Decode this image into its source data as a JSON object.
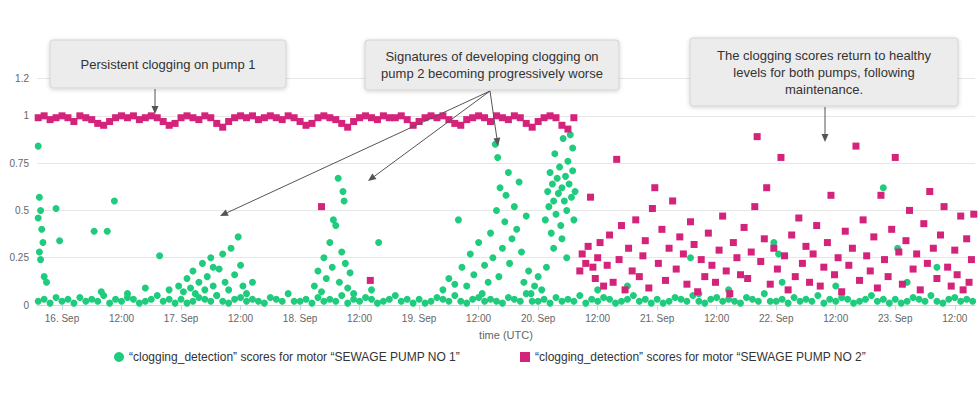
{
  "chart_data": {
    "type": "scatter",
    "annotations": [
      "Persistent clogging on pump 1",
      "Signatures of developing clogging on\npump 2 becoming progressively worse",
      "The clogging scores return to healthy\nlevels for both pumps, following\nmaintenance."
    ],
    "x_label": "time (UTC)",
    "xlim": [
      15.79,
      23.67
    ],
    "xticks": [
      {
        "value": 16,
        "label": "16. Sep"
      },
      {
        "value": 16.5,
        "label": "12:00"
      },
      {
        "value": 17,
        "label": "17. Sep"
      },
      {
        "value": 17.5,
        "label": "12:00"
      },
      {
        "value": 18,
        "label": "18. Sep"
      },
      {
        "value": 18.5,
        "label": "12:00"
      },
      {
        "value": 19,
        "label": "19. Sep"
      },
      {
        "value": 19.5,
        "label": "12:00"
      },
      {
        "value": 20,
        "label": "20. Sep"
      },
      {
        "value": 20.5,
        "label": "12:00"
      },
      {
        "value": 21,
        "label": "21. Sep"
      },
      {
        "value": 21.5,
        "label": "12:00"
      },
      {
        "value": 22,
        "label": "22. Sep"
      },
      {
        "value": 22.5,
        "label": "12:00"
      },
      {
        "value": 23,
        "label": "23. Sep"
      },
      {
        "value": 23.5,
        "label": "12:00"
      }
    ],
    "ylim": [
      0,
      1.2
    ],
    "yticks": [
      0,
      0.25,
      0.5,
      0.75,
      1,
      1.2
    ],
    "grid": true,
    "legend": "bottom",
    "series": [
      {
        "name": "“clogging_detection” scores for motor “SEWAGE PUMP NO 1”",
        "color": "#1fcb7c",
        "marker": "circle",
        "x": [
          15.8,
          15.85,
          15.9,
          15.95,
          16,
          16.05,
          16.1,
          16.15,
          16.2,
          16.25,
          16.3,
          16.35,
          16.4,
          16.45,
          16.5,
          16.55,
          16.6,
          16.65,
          16.7,
          16.75,
          16.8,
          16.85,
          16.9,
          16.95,
          17,
          17.05,
          17.1,
          17.15,
          17.2,
          17.25,
          17.3,
          17.35,
          17.4,
          17.45,
          17.5,
          17.55,
          17.6,
          17.65,
          17.7,
          17.75,
          17.8,
          17.85,
          17.9,
          17.95,
          18,
          18.05,
          18.1,
          18.15,
          18.2,
          18.25,
          18.3,
          18.35,
          18.4,
          18.45,
          18.5,
          18.55,
          18.6,
          18.65,
          18.7,
          18.75,
          18.8,
          18.85,
          18.9,
          18.95,
          19,
          19.05,
          19.1,
          19.15,
          19.2,
          19.25,
          19.3,
          19.35,
          19.4,
          19.45,
          19.5,
          19.55,
          19.6,
          19.65,
          19.7,
          19.75,
          19.8,
          19.85,
          19.9,
          19.95,
          20,
          20.05,
          20.1,
          20.15,
          20.2,
          20.25,
          20.3,
          20.35,
          20.4,
          20.45,
          20.5,
          20.55,
          20.6,
          20.65,
          20.7,
          20.75,
          20.8,
          20.85,
          20.9,
          20.95,
          21,
          21.05,
          21.1,
          21.15,
          21.2,
          21.25,
          21.3,
          21.35,
          21.4,
          21.45,
          21.5,
          21.55,
          21.6,
          21.65,
          21.7,
          21.75,
          21.8,
          21.85,
          21.9,
          21.95,
          22,
          22.05,
          22.1,
          22.15,
          22.2,
          22.25,
          22.3,
          22.35,
          22.4,
          22.45,
          22.5,
          22.55,
          22.6,
          22.65,
          22.7,
          22.75,
          22.8,
          22.85,
          22.9,
          22.95,
          23,
          23.05,
          23.1,
          23.15,
          23.2,
          23.25,
          23.3,
          23.35,
          23.4,
          23.45,
          23.5,
          23.55,
          23.6,
          23.65,
          15.8,
          15.8,
          15.81,
          15.81,
          15.82,
          15.82,
          15.83,
          15.84,
          15.85,
          15.87,
          15.95,
          15.98,
          16.27,
          16.38,
          16.44,
          16.33,
          16.82,
          16.7,
          16.55,
          16.9,
          16.98,
          17.02,
          17.05,
          17.08,
          17.1,
          17.12,
          17.15,
          17.18,
          17.2,
          17.22,
          17.25,
          17.27,
          17.3,
          17.32,
          17.35,
          17.37,
          17.4,
          17.42,
          17.45,
          17.48,
          17.5,
          17.52,
          17.55,
          17.6,
          17.27,
          18.12,
          18.15,
          18.18,
          18.2,
          18.22,
          18.25,
          18.27,
          18.3,
          18.32,
          18.33,
          18.35,
          18.37,
          18.38,
          18.4,
          18.42,
          18.45,
          18.66,
          18.6,
          18.28,
          18.36,
          19.2,
          19.25,
          19.3,
          19.33,
          19.36,
          19.4,
          19.43,
          19.46,
          19.5,
          19.53,
          19.55,
          19.58,
          19.6,
          19.62,
          19.64,
          19.65,
          19.66,
          19.67,
          19.68,
          19.7,
          19.72,
          19.73,
          19.75,
          19.76,
          19.78,
          19.8,
          19.82,
          19.84,
          19.86,
          19.88,
          19.9,
          19.92,
          19.94,
          19.97,
          20,
          20.03,
          20.06,
          20.08,
          20.09,
          20.1,
          20.11,
          20.12,
          20.13,
          20.14,
          20.15,
          20.16,
          20.17,
          20.18,
          20.19,
          20.2,
          20.21,
          20.22,
          20.23,
          20.24,
          20.25,
          20.26,
          20.27,
          20.28,
          20.29,
          20.3,
          20.31,
          20.29,
          20.2,
          20.13,
          20.24,
          20.07,
          20.5,
          20.75,
          21.28,
          21.35,
          21.98,
          22.02,
          22.05,
          22.9,
          23.02,
          23.35,
          21.6,
          22.5,
          23.1
        ],
        "values": [
          0.02,
          0.03,
          0.01,
          0.04,
          0.02,
          0.03,
          0.01,
          0.04,
          0.02,
          0.03,
          0.02,
          0.05,
          0.01,
          0.03,
          0.02,
          0.04,
          0.03,
          0.01,
          0.02,
          0.03,
          0.05,
          0.02,
          0.03,
          0.01,
          0.03,
          0.01,
          0.02,
          0.04,
          0.03,
          0.02,
          0.05,
          0.02,
          0.01,
          0.03,
          0.04,
          0.02,
          0.03,
          0.02,
          0.01,
          0.04,
          0.03,
          0.02,
          0.06,
          0.02,
          0.02,
          0.03,
          0.01,
          0.04,
          0.02,
          0.03,
          0.02,
          0.05,
          0.01,
          0.03,
          0.02,
          0.04,
          0.03,
          0.01,
          0.02,
          0.03,
          0.05,
          0.02,
          0.03,
          0.01,
          0.03,
          0.01,
          0.02,
          0.04,
          0.03,
          0.02,
          0.05,
          0.02,
          0.01,
          0.03,
          0.04,
          0.02,
          0.03,
          0.02,
          0.01,
          0.04,
          0.03,
          0.02,
          0.06,
          0.02,
          0.02,
          0.03,
          0.01,
          0.04,
          0.02,
          0.03,
          0.02,
          0.05,
          0.01,
          0.03,
          0.02,
          0.04,
          0.03,
          0.01,
          0.02,
          0.03,
          0.05,
          0.02,
          0.03,
          0.01,
          0.03,
          0.01,
          0.02,
          0.04,
          0.03,
          0.02,
          0.05,
          0.02,
          0.01,
          0.03,
          0.04,
          0.02,
          0.03,
          0.02,
          0.01,
          0.04,
          0.03,
          0.02,
          0.06,
          0.02,
          0.02,
          0.03,
          0.01,
          0.04,
          0.02,
          0.03,
          0.02,
          0.05,
          0.01,
          0.03,
          0.02,
          0.04,
          0.03,
          0.01,
          0.02,
          0.03,
          0.05,
          0.02,
          0.03,
          0.01,
          0.03,
          0.01,
          0.02,
          0.04,
          0.03,
          0.02,
          0.05,
          0.02,
          0.01,
          0.03,
          0.04,
          0.02,
          0.03,
          0.02,
          0.84,
          0.46,
          0.57,
          0.28,
          0.5,
          0.24,
          0.4,
          0.33,
          0.15,
          0.12,
          0.51,
          0.34,
          0.39,
          0.39,
          0.55,
          0.07,
          0.26,
          0.09,
          0.06,
          0.08,
          0.1,
          0.07,
          0.14,
          0.09,
          0.18,
          0.06,
          0.12,
          0.22,
          0.08,
          0.15,
          0.25,
          0.1,
          0.05,
          0.19,
          0.27,
          0.12,
          0.08,
          0.3,
          0.16,
          0.36,
          0.21,
          0.1,
          0.06,
          0.12,
          0.2,
          0.1,
          0.18,
          0.07,
          0.25,
          0.14,
          0.33,
          0.2,
          0.42,
          0.67,
          0.12,
          0.28,
          0.55,
          0.22,
          0.09,
          0.17,
          0.06,
          0.33,
          0.08,
          0.45,
          0.6,
          0.08,
          0.14,
          0.11,
          0.45,
          0.2,
          0.1,
          0.27,
          0.16,
          0.33,
          0.06,
          0.21,
          0.12,
          0.38,
          0.25,
          0.85,
          0.5,
          0.78,
          0.15,
          0.62,
          0.3,
          0.44,
          0.58,
          0.7,
          0.22,
          0.35,
          0.52,
          0.4,
          0.65,
          0.28,
          0.12,
          0.47,
          0.18,
          0.06,
          0.1,
          0.15,
          0.08,
          0.45,
          0.6,
          0.52,
          0.7,
          0.38,
          0.64,
          0.55,
          0.8,
          0.48,
          0.67,
          0.59,
          0.73,
          0.42,
          0.62,
          0.88,
          0.55,
          0.68,
          0.5,
          0.76,
          0.64,
          0.9,
          0.57,
          0.71,
          0.45,
          0.6,
          0.83,
          0.35,
          0.3,
          0.25,
          0.2,
          0.08,
          0.1,
          0.25,
          0.06,
          0.33,
          0.27,
          0.12,
          0.62,
          0.3,
          0.2,
          0.08,
          0.1,
          0.12
        ]
      },
      {
        "name": "“clogging_detection” scores for motor “SEWAGE PUMP NO 2”",
        "color": "#d4237a",
        "marker": "square",
        "x": [
          15.8,
          15.85,
          15.9,
          15.95,
          16,
          16.05,
          16.1,
          16.15,
          16.2,
          16.25,
          16.3,
          16.35,
          16.4,
          16.45,
          16.5,
          16.55,
          16.6,
          16.65,
          16.7,
          16.75,
          16.8,
          16.85,
          16.9,
          16.95,
          17,
          17.05,
          17.1,
          17.15,
          17.2,
          17.25,
          17.3,
          17.35,
          17.4,
          17.45,
          17.5,
          17.55,
          17.6,
          17.65,
          17.7,
          17.75,
          17.8,
          17.85,
          17.9,
          17.95,
          18,
          18.05,
          18.1,
          18.15,
          18.2,
          18.25,
          18.3,
          18.35,
          18.4,
          18.45,
          18.5,
          18.55,
          18.6,
          18.65,
          18.7,
          18.75,
          18.8,
          18.85,
          18.9,
          18.95,
          19,
          19.05,
          19.1,
          19.15,
          19.2,
          19.25,
          19.3,
          19.35,
          19.4,
          19.45,
          19.5,
          19.55,
          19.6,
          19.65,
          19.7,
          19.75,
          19.8,
          19.85,
          19.9,
          19.95,
          20,
          20.05,
          20.1,
          20.15,
          20.2,
          20.25,
          20.3,
          18.18,
          18.59,
          20.35,
          20.37,
          20.4,
          20.42,
          20.44,
          20.46,
          20.48,
          20.5,
          20.52,
          20.55,
          20.58,
          20.6,
          20.63,
          20.66,
          20.68,
          20.7,
          20.73,
          20.76,
          20.79,
          20.82,
          20.85,
          20.88,
          20.9,
          20.93,
          20.96,
          20.98,
          21.01,
          21.04,
          21.07,
          21.1,
          21.13,
          21.16,
          21.19,
          21.22,
          21.25,
          21.28,
          21.31,
          21.34,
          21.37,
          21.4,
          21.43,
          21.46,
          21.49,
          21.52,
          21.55,
          21.58,
          21.61,
          21.64,
          21.67,
          21.7,
          21.73,
          21.76,
          21.79,
          21.82,
          21.84,
          21.87,
          21.9,
          21.92,
          21.95,
          21.98,
          22.01,
          22.04,
          22.07,
          22.1,
          22.13,
          22.16,
          22.19,
          22.22,
          22.25,
          22.28,
          22.31,
          22.34,
          22.37,
          22.4,
          22.43,
          22.46,
          22.49,
          22.52,
          22.55,
          22.58,
          22.61,
          22.64,
          22.67,
          22.7,
          22.73,
          22.76,
          22.79,
          22.82,
          22.85,
          22.88,
          22.91,
          22.94,
          22.97,
          23,
          23.03,
          23.06,
          23.09,
          23.12,
          23.15,
          23.18,
          23.21,
          23.24,
          23.27,
          23.29,
          23.32,
          23.35,
          23.38,
          23.41,
          23.44,
          23.47,
          23.5,
          23.52,
          23.55,
          23.57,
          23.6,
          23.62,
          23.64,
          23.66
        ],
        "values": [
          0.99,
          1,
          0.98,
          0.99,
          1,
          0.99,
          0.97,
          1,
          0.99,
          0.98,
          0.96,
          0.95,
          0.97,
          0.99,
          1,
          0.99,
          1,
          0.98,
          0.99,
          1,
          0.99,
          0.97,
          0.95,
          0.96,
          0.99,
          1,
          0.99,
          0.98,
          1,
          0.99,
          0.96,
          0.94,
          0.97,
          0.99,
          1,
          0.99,
          1,
          0.98,
          0.99,
          1,
          0.99,
          0.98,
          1,
          0.99,
          0.97,
          0.95,
          0.96,
          0.99,
          1,
          0.99,
          0.98,
          0.96,
          0.94,
          0.97,
          0.99,
          1,
          0.99,
          0.98,
          1,
          0.99,
          0.99,
          1,
          0.98,
          0.95,
          0.97,
          0.99,
          1,
          0.99,
          1,
          0.98,
          0.96,
          0.95,
          0.98,
          0.99,
          1,
          0.99,
          0.97,
          1,
          0.99,
          0.98,
          1,
          0.99,
          0.96,
          0.94,
          0.97,
          0.99,
          1,
          0.99,
          0.95,
          0.93,
          0.99,
          0.52,
          0.13,
          0.18,
          0.27,
          0.22,
          0.31,
          0.57,
          0.2,
          0.14,
          0.25,
          0.33,
          0.1,
          0.21,
          0.37,
          0.12,
          0.77,
          0.24,
          0.42,
          0.08,
          0.3,
          0.18,
          0.45,
          0.15,
          0.26,
          0.34,
          0.09,
          0.51,
          0.62,
          0.22,
          0.4,
          0.13,
          0.3,
          0.55,
          0.19,
          0.36,
          0.27,
          0.11,
          0.44,
          0.32,
          0.07,
          0.24,
          0.15,
          0.38,
          0.21,
          0.12,
          0.29,
          0.47,
          0.18,
          0.06,
          0.33,
          0.25,
          0.16,
          0.41,
          0.14,
          0.28,
          0.52,
          0.89,
          0.23,
          0.35,
          0.62,
          0.11,
          0.3,
          0.19,
          0.78,
          0.26,
          0.08,
          0.37,
          0.15,
          0.46,
          0.22,
          0.31,
          0.12,
          0.27,
          0.42,
          0.1,
          0.2,
          0.33,
          0.58,
          0.16,
          0.25,
          0.07,
          0.39,
          0.21,
          0.3,
          0.84,
          0.13,
          0.45,
          0.26,
          0.18,
          0.36,
          0.09,
          0.58,
          0.24,
          0.15,
          0.4,
          0.78,
          0.28,
          0.11,
          0.34,
          0.5,
          0.19,
          0.27,
          0.08,
          0.43,
          0.22,
          0.6,
          0.3,
          0.14,
          0.37,
          0.52,
          0.2,
          0.1,
          0.29,
          0.16,
          0.47,
          0.08,
          0.35,
          0.12,
          0.24,
          0.48
        ]
      }
    ]
  }
}
